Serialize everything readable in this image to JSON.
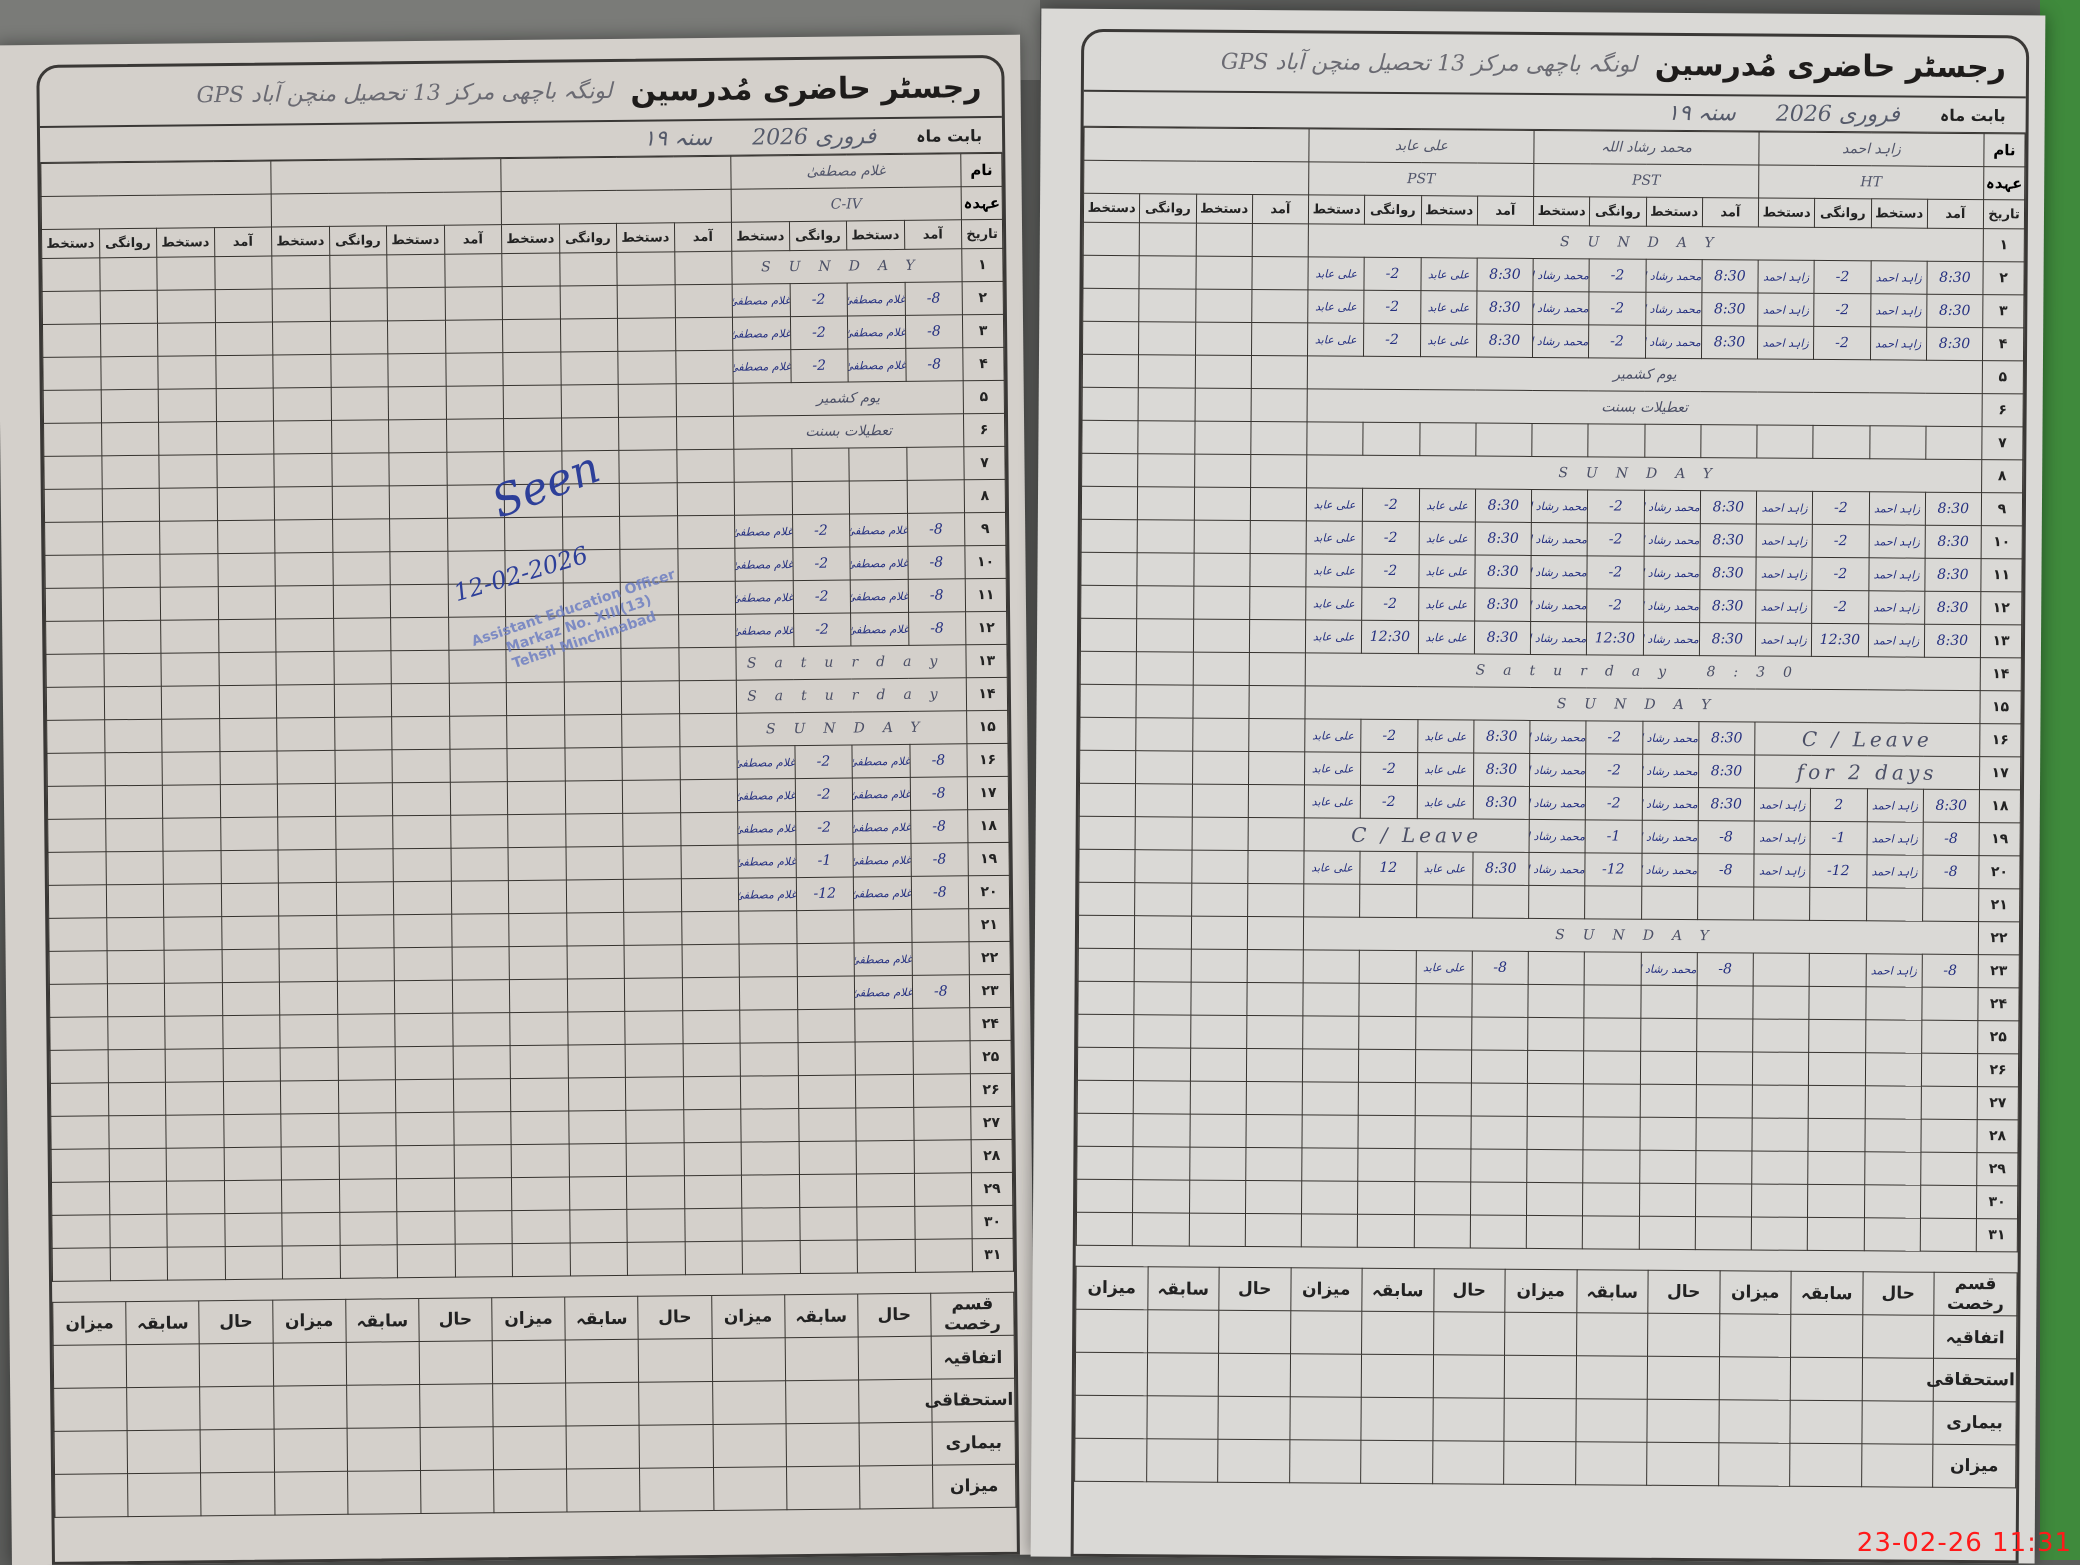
{
  "register_title": "رجسٹر حاضری مُدرسین",
  "school": "GPS لونگہ باچھی مرکز 13 تحصیل منچن آباد",
  "labels": {
    "month": "بابت ماہ",
    "name": "نام",
    "post": "عہدہ",
    "date": "تاریخ",
    "arrival": "آمد",
    "signature": "دستخط",
    "departure": "روانگی",
    "leave_type": "قسم رخصت",
    "current": "حال",
    "previous": "سابقہ",
    "total": "میزان"
  },
  "month_value": "فروری 2026",
  "year_suffix": "سنہ ۱۹",
  "leave_rows": [
    "اتفاقیہ",
    "استحقاقی",
    "بیماری",
    "میزان"
  ],
  "stamp": {
    "seen": "Seen",
    "date": "12-02-2026",
    "seal": [
      "Assistant Education Officer",
      "Markaz No. XIII(13)",
      "Tehsil Minchinabad"
    ]
  },
  "timestamp": "23-02-26  11:31",
  "colors": {
    "ink_blue": "#253080",
    "pencil": "#4b4f66",
    "timestamp": "#ff1a1a",
    "paper": "#d8d6d2"
  },
  "pages": [
    {
      "id": "left",
      "teachers": [
        {
          "name": "غلام مصطفیٰ",
          "post": "C-IV"
        },
        {
          "name": "",
          "post": ""
        },
        {
          "name": "",
          "post": ""
        },
        {
          "name": "",
          "post": ""
        }
      ],
      "rows": [
        {
          "day": "۱",
          "note": "SUNDAY"
        },
        {
          "day": "۲",
          "t": [
            [
              "8-",
              "غلام مصطفیٰ",
              "2-",
              "غلام مصطفیٰ"
            ]
          ]
        },
        {
          "day": "۳",
          "t": [
            [
              "8-",
              "غلام مصطفیٰ",
              "2-",
              "غلام مصطفیٰ"
            ]
          ]
        },
        {
          "day": "۴",
          "t": [
            [
              "8-",
              "غلام مصطفیٰ",
              "2-",
              "غلام مصطفیٰ"
            ]
          ]
        },
        {
          "day": "۵",
          "note": "یوم کشمیر"
        },
        {
          "day": "۶",
          "note": "تعطیلات بسنت"
        },
        {
          "day": "۷"
        },
        {
          "day": "۸"
        },
        {
          "day": "۹",
          "t": [
            [
              "8-",
              "غلام مصطفیٰ",
              "2-",
              "غلام مصطفیٰ"
            ]
          ]
        },
        {
          "day": "۱۰",
          "t": [
            [
              "8-",
              "غلام مصطفیٰ",
              "2-",
              "غلام مصطفیٰ"
            ]
          ]
        },
        {
          "day": "۱۱",
          "t": [
            [
              "8-",
              "غلام مصطفیٰ",
              "2-",
              "غلام مصطفیٰ"
            ]
          ]
        },
        {
          "day": "۱۲",
          "t": [
            [
              "8-",
              "غلام مصطفیٰ",
              "2-",
              "غلام مصطفیٰ"
            ]
          ]
        },
        {
          "day": "۱۳",
          "note": "Saturday"
        },
        {
          "day": "۱۴",
          "note": "Saturday"
        },
        {
          "day": "۱۵",
          "note": "SUNDAY"
        },
        {
          "day": "۱۶",
          "t": [
            [
              "8-",
              "غلام مصطفیٰ",
              "2-",
              "غلام مصطفیٰ"
            ]
          ]
        },
        {
          "day": "۱۷",
          "t": [
            [
              "8-",
              "غلام مصطفیٰ",
              "2-",
              "غلام مصطفیٰ"
            ]
          ]
        },
        {
          "day": "۱۸",
          "t": [
            [
              "8-",
              "غلام مصطفیٰ",
              "2-",
              "غلام مصطفیٰ"
            ]
          ]
        },
        {
          "day": "۱۹",
          "t": [
            [
              "8-",
              "غلام مصطفیٰ",
              "1-",
              "غلام مصطفیٰ"
            ]
          ]
        },
        {
          "day": "۲۰",
          "t": [
            [
              "8-",
              "غلام مصطفیٰ",
              "12-",
              "غلام مصطفیٰ"
            ]
          ]
        },
        {
          "day": "۲۱"
        },
        {
          "day": "۲۲",
          "t": [
            [
              "",
              "غلام مصطفیٰ",
              "",
              ""
            ]
          ]
        },
        {
          "day": "۲۳",
          "t": [
            [
              "8-",
              "غلام مصطفیٰ",
              "",
              ""
            ]
          ]
        },
        {
          "day": "۲۴"
        },
        {
          "day": "۲۵"
        },
        {
          "day": "۲۶"
        },
        {
          "day": "۲۷"
        },
        {
          "day": "۲۸"
        },
        {
          "day": "۲۹"
        },
        {
          "day": "۳۰"
        },
        {
          "day": "۳۱"
        }
      ]
    },
    {
      "id": "right",
      "teachers": [
        {
          "name": "زاہد احمد",
          "post": "HT"
        },
        {
          "name": "محمد رشاد اللہ",
          "post": "PST"
        },
        {
          "name": "علی عابد",
          "post": "PST"
        },
        {
          "name": "",
          "post": ""
        }
      ],
      "rows": [
        {
          "day": "۱",
          "note": "SUNDAY"
        },
        {
          "day": "۲",
          "t": [
            [
              "8:30",
              "زاہد احمد",
              "2-",
              "زاہد احمد"
            ],
            [
              "8:30",
              "محمد رشاد اللہ",
              "2-",
              "محمد رشاد اللہ"
            ],
            [
              "8:30",
              "علی عابد",
              "2-",
              "علی عابد"
            ]
          ]
        },
        {
          "day": "۳",
          "t": [
            [
              "8:30",
              "زاہد احمد",
              "2-",
              "زاہد احمد"
            ],
            [
              "8:30",
              "محمد رشاد اللہ",
              "2-",
              "محمد رشاد اللہ"
            ],
            [
              "8:30",
              "علی عابد",
              "2-",
              "علی عابد"
            ]
          ]
        },
        {
          "day": "۴",
          "t": [
            [
              "8:30",
              "زاہد احمد",
              "2-",
              "زاہد احمد"
            ],
            [
              "8:30",
              "محمد رشاد اللہ",
              "2-",
              "محمد رشاد اللہ"
            ],
            [
              "8:30",
              "علی عابد",
              "2-",
              "علی عابد"
            ]
          ]
        },
        {
          "day": "۵",
          "note": "یوم کشمیر"
        },
        {
          "day": "۶",
          "note": "تعطیلات بسنت"
        },
        {
          "day": "۷"
        },
        {
          "day": "۸",
          "note": "SUNDAY"
        },
        {
          "day": "۹",
          "t": [
            [
              "8:30",
              "زاہد احمد",
              "2-",
              "زاہد احمد"
            ],
            [
              "8:30",
              "محمد رشاد اللہ",
              "2-",
              "محمد رشاد اللہ"
            ],
            [
              "8:30",
              "علی عابد",
              "2-",
              "علی عابد"
            ]
          ]
        },
        {
          "day": "۱۰",
          "t": [
            [
              "8:30",
              "زاہد احمد",
              "2-",
              "زاہد احمد"
            ],
            [
              "8:30",
              "محمد رشاد اللہ",
              "2-",
              "محمد رشاد اللہ"
            ],
            [
              "8:30",
              "علی عابد",
              "2-",
              "علی عابد"
            ]
          ]
        },
        {
          "day": "۱۱",
          "t": [
            [
              "8:30",
              "زاہد احمد",
              "2-",
              "زاہد احمد"
            ],
            [
              "8:30",
              "محمد رشاد اللہ",
              "2-",
              "محمد رشاد اللہ"
            ],
            [
              "8:30",
              "علی عابد",
              "2-",
              "علی عابد"
            ]
          ]
        },
        {
          "day": "۱۲",
          "t": [
            [
              "8:30",
              "زاہد احمد",
              "2-",
              "زاہد احمد"
            ],
            [
              "8:30",
              "محمد رشاد اللہ",
              "2-",
              "محمد رشاد اللہ"
            ],
            [
              "8:30",
              "علی عابد",
              "2-",
              "علی عابد"
            ]
          ]
        },
        {
          "day": "۱۳",
          "t": [
            [
              "8:30",
              "زاہد احمد",
              "12:30",
              "زاہد احمد"
            ],
            [
              "8:30",
              "محمد رشاد اللہ",
              "12:30",
              "محمد رشاد اللہ"
            ],
            [
              "8:30",
              "علی عابد",
              "12:30",
              "علی عابد"
            ]
          ]
        },
        {
          "day": "۱۴",
          "note": "8:30 Saturday"
        },
        {
          "day": "۱۵",
          "note": "SUNDAY"
        },
        {
          "day": "۱۶",
          "t": [
            "C / Leave",
            [
              "8:30",
              "محمد رشاد اللہ",
              "2-",
              "محمد رشاد اللہ"
            ],
            [
              "8:30",
              "علی عابد",
              "2-",
              "علی عابد"
            ]
          ]
        },
        {
          "day": "۱۷",
          "t": [
            "for 2 days",
            [
              "8:30",
              "محمد رشاد اللہ",
              "2-",
              "محمد رشاد اللہ"
            ],
            [
              "8:30",
              "علی عابد",
              "2-",
              "علی عابد"
            ]
          ]
        },
        {
          "day": "۱۸",
          "t": [
            [
              "8:30",
              "زاہد احمد",
              "2",
              "زاہد احمد"
            ],
            [
              "8:30",
              "محمد رشاد اللہ",
              "2-",
              "محمد رشاد اللہ"
            ],
            [
              "8:30",
              "علی عابد",
              "2-",
              "علی عابد"
            ]
          ]
        },
        {
          "day": "۱۹",
          "t": [
            [
              "8-",
              "زاہد احمد",
              "1-",
              "زاہد احمد"
            ],
            [
              "8-",
              "محمد رشاد اللہ",
              "1-",
              "محمد رشاد اللہ"
            ],
            "C / Leave"
          ]
        },
        {
          "day": "۲۰",
          "t": [
            [
              "8-",
              "زاہد احمد",
              "12-",
              "زاہد احمد"
            ],
            [
              "8-",
              "محمد رشاد اللہ",
              "12-",
              "محمد رشاد اللہ"
            ],
            [
              "8:30",
              "علی عابد",
              "12",
              "علی عابد"
            ]
          ]
        },
        {
          "day": "۲۱"
        },
        {
          "day": "۲۲",
          "note": "SUNDAY"
        },
        {
          "day": "۲۳",
          "t": [
            [
              "8-",
              "زاہد احمد",
              "",
              ""
            ],
            [
              "8-",
              "محمد رشاد اللہ",
              "",
              ""
            ],
            [
              "8-",
              "علی عابد",
              "",
              ""
            ]
          ]
        },
        {
          "day": "۲۴"
        },
        {
          "day": "۲۵"
        },
        {
          "day": "۲۶"
        },
        {
          "day": "۲۷"
        },
        {
          "day": "۲۸"
        },
        {
          "day": "۲۹"
        },
        {
          "day": "۳۰"
        },
        {
          "day": "۳۱"
        }
      ]
    }
  ]
}
